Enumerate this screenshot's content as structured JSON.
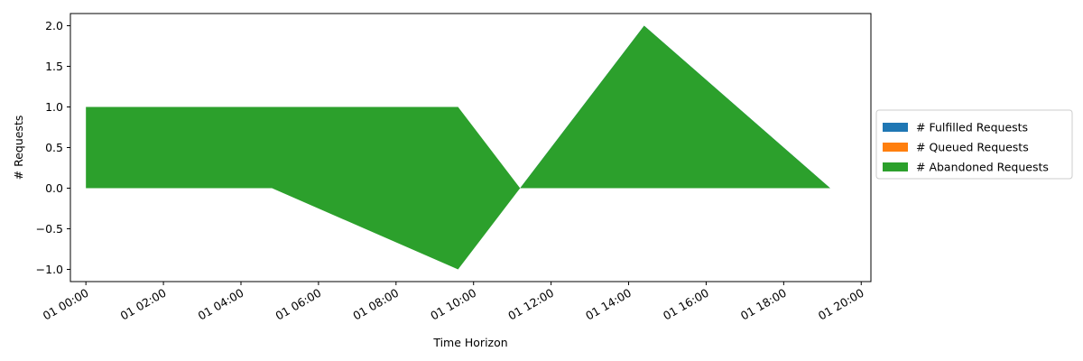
{
  "chart_data": {
    "type": "area",
    "xlabel": "Time Horizon",
    "ylabel": "# Requests",
    "ylim": [
      -1.15,
      2.15
    ],
    "xlim": [
      "01 00:00",
      "01 20:15"
    ],
    "x_ticks": [
      "01 00:00",
      "01 02:00",
      "01 04:00",
      "01 06:00",
      "01 08:00",
      "01 10:00",
      "01 12:00",
      "01 14:00",
      "01 16:00",
      "01 18:00",
      "01 20:00"
    ],
    "y_ticks": [
      -1.0,
      -0.5,
      0.0,
      0.5,
      1.0,
      1.5,
      2.0
    ],
    "legend_position": "outside-right",
    "grid": false,
    "series": [
      {
        "name": "# Fulfilled Requests",
        "color": "#1f77b4",
        "x": [
          "01 00:00",
          "01 04:48",
          "01 09:36",
          "01 11:12",
          "01 14:24",
          "01 19:12"
        ],
        "values": [
          0,
          0,
          0,
          0,
          2,
          0
        ]
      },
      {
        "name": "# Queued Requests",
        "color": "#ff7f0e",
        "x": [
          "01 00:00",
          "01 04:48",
          "01 09:36",
          "01 11:12",
          "01 14:24",
          "01 19:12"
        ],
        "values": [
          0,
          0,
          0,
          0,
          0,
          0
        ]
      },
      {
        "name": "# Abandoned Requests",
        "color": "#2ca02c",
        "x": [
          "01 00:00",
          "01 04:48",
          "01 09:36",
          "01 11:12",
          "01 14:24",
          "01 19:12"
        ],
        "values": [
          1,
          1,
          1,
          0,
          0,
          0
        ],
        "baseline": [
          0,
          0,
          -1,
          0,
          2,
          0
        ]
      }
    ]
  }
}
